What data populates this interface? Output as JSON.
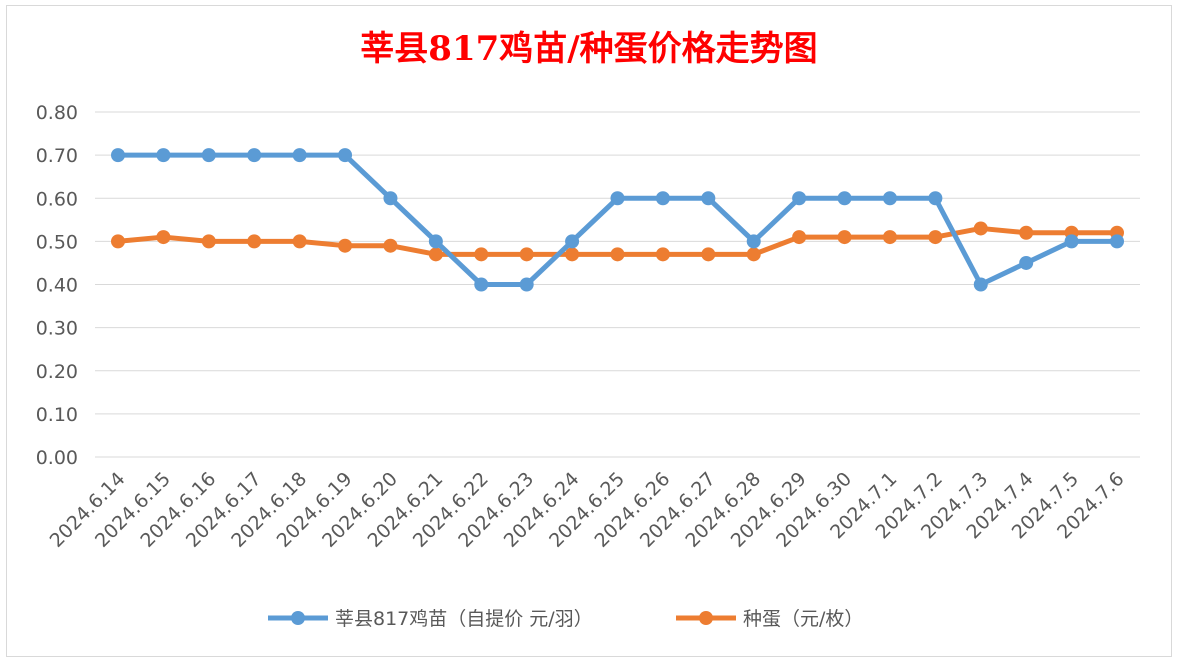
{
  "colors": {
    "series1": "#5b9bd5",
    "series2": "#ed7d31",
    "title": "#ff0000",
    "grid": "#d9d9d9",
    "text": "#595959"
  },
  "chart_data": {
    "type": "line",
    "title": "莘县817鸡苗/种蛋价格走势图",
    "xlabel": "",
    "ylabel": "",
    "ylim": [
      0,
      0.8
    ],
    "yticks": [
      "0.00",
      "0.10",
      "0.20",
      "0.30",
      "0.40",
      "0.50",
      "0.60",
      "0.70",
      "0.80"
    ],
    "grid": true,
    "legend": "bottom",
    "categories": [
      "2024.6.14",
      "2024.6.15",
      "2024.6.16",
      "2024.6.17",
      "2024.6.18",
      "2024.6.19",
      "2024.6.20",
      "2024.6.21",
      "2024.6.22",
      "2024.6.23",
      "2024.6.24",
      "2024.6.25",
      "2024.6.26",
      "2024.6.27",
      "2024.6.28",
      "2024.6.29",
      "2024.6.30",
      "2024.7.1",
      "2024.7.2",
      "2024.7.3",
      "2024.7.4",
      "2024.7.5",
      "2024.7.6"
    ],
    "series": [
      {
        "name": "莘县817鸡苗（自提价 元/羽）",
        "color": "#5b9bd5",
        "values": [
          0.7,
          0.7,
          0.7,
          0.7,
          0.7,
          0.7,
          0.6,
          0.5,
          0.4,
          0.4,
          0.5,
          0.6,
          0.6,
          0.6,
          0.5,
          0.6,
          0.6,
          0.6,
          0.6,
          0.4,
          0.45,
          0.5,
          0.5
        ]
      },
      {
        "name": "种蛋（元/枚）",
        "color": "#ed7d31",
        "values": [
          0.5,
          0.51,
          0.5,
          0.5,
          0.5,
          0.49,
          0.49,
          0.47,
          0.47,
          0.47,
          0.47,
          0.47,
          0.47,
          0.47,
          0.47,
          0.51,
          0.51,
          0.51,
          0.51,
          0.53,
          0.52,
          0.52,
          0.52
        ]
      }
    ]
  }
}
